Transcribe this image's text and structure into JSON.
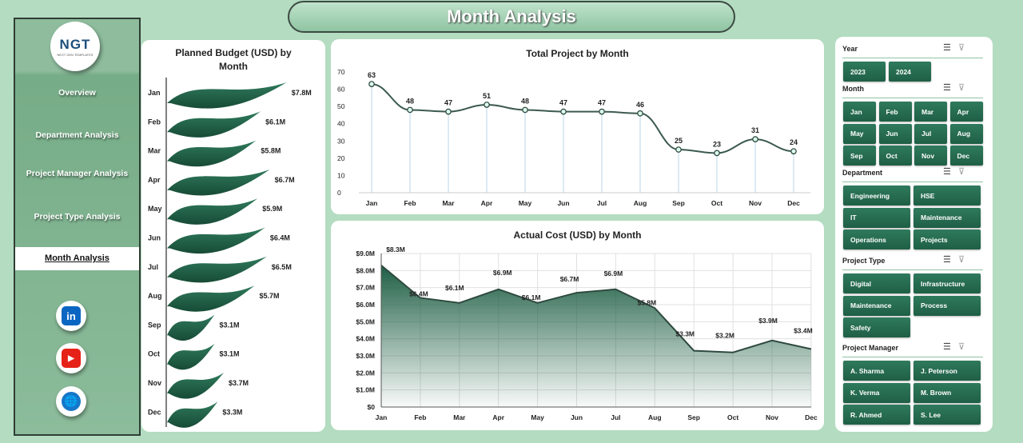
{
  "title": "Month Analysis",
  "sidebar": {
    "logo": "NGT",
    "logo_sub": "NEXT GEN TEMPLATES",
    "items": [
      {
        "label": "Overview"
      },
      {
        "label": "Department Analysis"
      },
      {
        "label": "Project Manager Analysis"
      },
      {
        "label": "Project Type Analysis"
      },
      {
        "label": "Month Analysis",
        "active": true
      }
    ],
    "social": [
      {
        "icon": "linkedin-icon",
        "label": "in",
        "color": "#0a66c2"
      },
      {
        "icon": "youtube-icon",
        "label": "▶",
        "color": "#e62117"
      },
      {
        "icon": "globe-icon",
        "label": "🌐",
        "color": "#1677c9"
      }
    ]
  },
  "chart_data": [
    {
      "type": "bar",
      "title": "Planned Budget (USD) by Month",
      "categories": [
        "Jan",
        "Feb",
        "Mar",
        "Apr",
        "May",
        "Jun",
        "Jul",
        "Aug",
        "Sep",
        "Oct",
        "Nov",
        "Dec"
      ],
      "values": [
        7.8,
        6.1,
        5.8,
        6.7,
        5.9,
        6.4,
        6.5,
        5.7,
        3.1,
        3.1,
        3.7,
        3.3
      ],
      "labels": [
        "$7.8M",
        "$6.1M",
        "$5.8M",
        "$6.7M",
        "$5.9M",
        "$6.4M",
        "$6.5M",
        "$5.7M",
        "$3.1M",
        "$3.1M",
        "$3.7M",
        "$3.3M"
      ],
      "orientation": "horizontal",
      "color": "#1f5f45"
    },
    {
      "type": "line",
      "title": "Total Project by Month",
      "categories": [
        "Jan",
        "Feb",
        "Mar",
        "Apr",
        "May",
        "Jun",
        "Jul",
        "Aug",
        "Sep",
        "Oct",
        "Nov",
        "Dec"
      ],
      "values": [
        63,
        48,
        47,
        51,
        48,
        47,
        47,
        46,
        25,
        23,
        31,
        24
      ],
      "ylim": [
        0,
        70
      ],
      "yticks": [
        "0",
        "10",
        "20",
        "30",
        "40",
        "50",
        "60",
        "70"
      ],
      "color": "#3d5a50"
    },
    {
      "type": "area",
      "title": "Actual Cost (USD) by Month",
      "categories": [
        "Jan",
        "Feb",
        "Mar",
        "Apr",
        "May",
        "Jun",
        "Jul",
        "Aug",
        "Sep",
        "Oct",
        "Nov",
        "Dec"
      ],
      "values": [
        8.3,
        6.4,
        6.1,
        6.9,
        6.1,
        6.7,
        6.9,
        5.8,
        3.3,
        3.2,
        3.9,
        3.4
      ],
      "labels": [
        "$8.3M",
        "$6.4M",
        "$6.1M",
        "$6.9M",
        "$6.1M",
        "$6.7M",
        "$6.9M",
        "$5.8M",
        "$3.3M",
        "$3.2M",
        "$3.9M",
        "$3.4M"
      ],
      "ylim": [
        0,
        9
      ],
      "yticks": [
        "$0",
        "$1.0M",
        "$2.0M",
        "$3.0M",
        "$4.0M",
        "$5.0M",
        "$6.0M",
        "$7.0M",
        "$8.0M",
        "$9.0M"
      ],
      "grid": true,
      "color": "#1f5f45"
    }
  ],
  "slicers": [
    {
      "label": "Year",
      "items": [
        "2023",
        "2024"
      ],
      "cols": 2
    },
    {
      "label": "Month",
      "items": [
        "Jan",
        "Feb",
        "Mar",
        "Apr",
        "May",
        "Jun",
        "Jul",
        "Aug",
        "Sep",
        "Oct",
        "Nov",
        "Dec"
      ],
      "cols": 4
    },
    {
      "label": "Department",
      "items": [
        "Engineering",
        "HSE",
        "IT",
        "Maintenance",
        "Operations",
        "Projects"
      ],
      "cols": 2
    },
    {
      "label": "Project Type",
      "items": [
        "Digital",
        "Infrastructure",
        "Maintenance",
        "Process",
        "Safety"
      ],
      "cols": 2
    },
    {
      "label": "Project Manager",
      "items": [
        "A. Sharma",
        "J. Peterson",
        "K. Verma",
        "M. Brown",
        "R. Ahmed",
        "S. Lee"
      ],
      "cols": 2
    }
  ]
}
